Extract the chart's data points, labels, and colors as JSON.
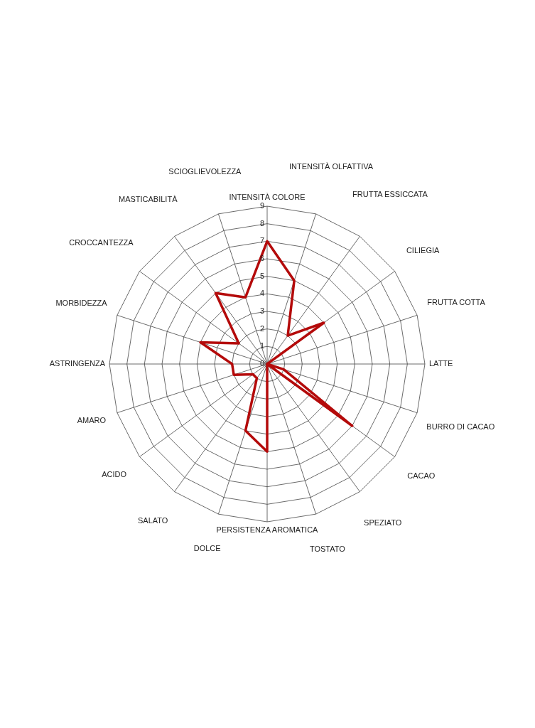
{
  "chart_data": {
    "type": "radar",
    "categories": [
      "INTENSITÀ COLORE",
      "INTENSITÀ OLFATTIVA",
      "FRUTTA ESSICCATA",
      "CILIEGIA",
      "FRUTTA COTTA",
      "LATTE",
      "BURRO DI CACAO",
      "CACAO",
      "SPEZIATO",
      "TOSTATO",
      "PERSISTENZA AROMATICA",
      "DOLCE",
      "SALATO",
      "ACIDO",
      "AMARO",
      "ASTRINGENZA",
      "MORBIDEZZA",
      "CROCCANTEZZA",
      "MASTICABILITÀ",
      "SCIOGLIEVOLEZZA"
    ],
    "series": [
      {
        "color": "#b40a0a",
        "values": [
          7,
          5,
          2,
          4,
          0,
          0,
          1,
          6,
          0,
          0,
          5,
          4,
          1,
          1,
          2,
          2,
          4,
          2,
          5,
          4
        ]
      }
    ],
    "ylim": [
      0,
      9
    ],
    "yticks": [
      0,
      1,
      2,
      3,
      4,
      5,
      6,
      7,
      8,
      9
    ],
    "grid": true,
    "legend": false,
    "marker": "none"
  }
}
